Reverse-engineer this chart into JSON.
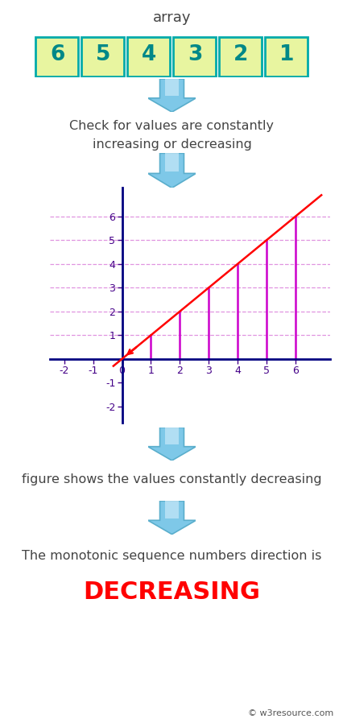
{
  "title": "array",
  "array_values": [
    6,
    5,
    4,
    3,
    2,
    1
  ],
  "cell_fill": "#e8f5a0",
  "cell_border": "#00aaaa",
  "cell_text": "#008888",
  "text1_line1": "Check for values are constantly",
  "text1_line2": "increasing or decreasing",
  "text2": "figure shows the values constantly decreasing",
  "text3": "The monotonic sequence numbers direction is",
  "text4": "DECREASING",
  "text_color": "#444444",
  "result_color": "#ff0000",
  "watermark": "© w3resource.com",
  "plot_line_color": "red",
  "plot_vline_color": "#cc00cc",
  "plot_hline_color": "#dd88dd",
  "plot_axis_color": "#000080",
  "plot_tick_color": "#440088",
  "background_color": "#ffffff",
  "xlim": [
    -2.5,
    7.2
  ],
  "ylim": [
    -2.7,
    7.2
  ],
  "xticks": [
    -2,
    -1,
    0,
    1,
    2,
    3,
    4,
    5,
    6
  ],
  "yticks": [
    -2,
    -1,
    0,
    1,
    2,
    3,
    4,
    5,
    6
  ],
  "points_x": [
    1,
    2,
    3,
    4,
    5,
    6
  ],
  "points_y": [
    1,
    2,
    3,
    4,
    5,
    6
  ],
  "arrow_face": "#7ec8e8",
  "arrow_edge": "#5aaecc",
  "arrow_highlight": "#c8e8f8"
}
